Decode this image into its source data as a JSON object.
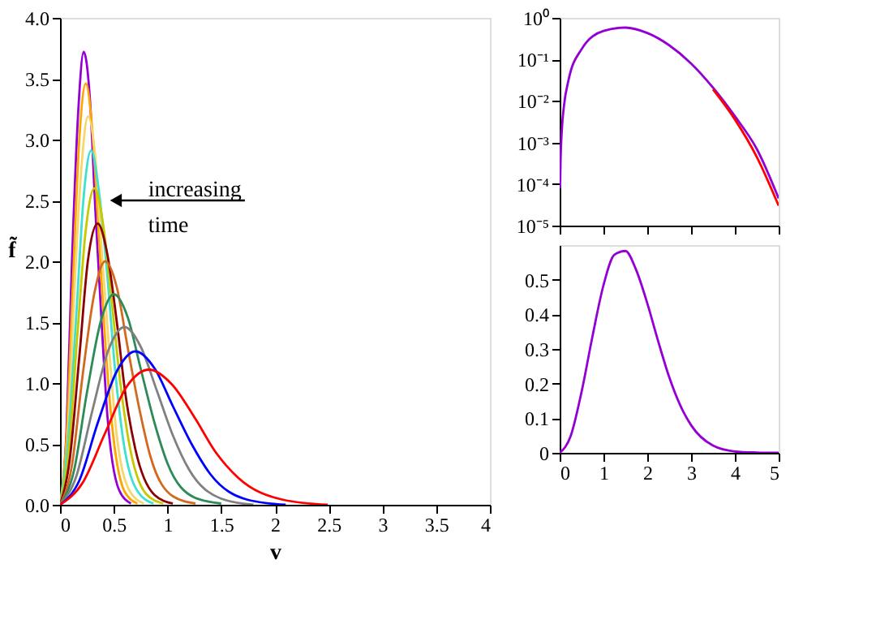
{
  "chart_data": [
    {
      "type": "line",
      "xlabel": "v",
      "ylabel": "f̃",
      "xlim": [
        0,
        4
      ],
      "ylim": [
        0,
        4
      ],
      "xticks": [
        0,
        0.5,
        1,
        1.5,
        2,
        2.5,
        3,
        3.5,
        4
      ],
      "yticks": [
        {
          "value": 0,
          "label": "0.0"
        },
        0.5,
        {
          "value": 1,
          "label": "1.0"
        },
        1.5,
        {
          "value": 2,
          "label": "2.0"
        },
        2.5,
        {
          "value": 3,
          "label": "3.0"
        },
        3.5,
        {
          "value": 4,
          "label": "4.0"
        }
      ],
      "grid": false,
      "marker": "none",
      "line_style": "solid",
      "annotations": [
        "increasing time"
      ],
      "series": [
        {
          "color": "#9400d3",
          "x": [
            0,
            0.06,
            0.11,
            0.17,
            0.22,
            0.28,
            0.33,
            0.39,
            0.44,
            0.55,
            0.66
          ],
          "values": [
            0,
            0.6,
            1.97,
            3.24,
            3.72,
            3.31,
            2.4,
            1.45,
            0.74,
            0.12,
            0.01
          ]
        },
        {
          "color": "#ffa500",
          "x": [
            0,
            0.06,
            0.12,
            0.18,
            0.24,
            0.3,
            0.36,
            0.42,
            0.48,
            0.6,
            0.72
          ],
          "values": [
            0,
            0.55,
            1.83,
            3.01,
            3.46,
            3.08,
            2.23,
            1.35,
            0.69,
            0.11,
            0.01
          ]
        },
        {
          "color": "#f5d76e",
          "x": [
            0,
            0.07,
            0.13,
            0.2,
            0.26,
            0.33,
            0.39,
            0.46,
            0.52,
            0.65,
            0.78
          ],
          "values": [
            0,
            0.51,
            1.69,
            2.78,
            3.19,
            2.84,
            2.06,
            1.24,
            0.63,
            0.11,
            0.01
          ]
        },
        {
          "color": "#40e0d0",
          "x": [
            0,
            0.07,
            0.15,
            0.22,
            0.29,
            0.36,
            0.44,
            0.51,
            0.58,
            0.73,
            0.87
          ],
          "values": [
            0,
            0.47,
            1.54,
            2.53,
            2.91,
            2.59,
            1.88,
            1.13,
            0.58,
            0.1,
            0.01
          ]
        },
        {
          "color": "#c8c800",
          "x": [
            0,
            0.08,
            0.16,
            0.24,
            0.32,
            0.4,
            0.48,
            0.56,
            0.64,
            0.8,
            0.96
          ],
          "values": [
            0,
            0.42,
            1.38,
            2.26,
            2.6,
            2.31,
            1.68,
            1.01,
            0.52,
            0.09,
            0.01
          ]
        },
        {
          "color": "#8b0000",
          "x": [
            0,
            0.09,
            0.18,
            0.26,
            0.35,
            0.44,
            0.53,
            0.61,
            0.7,
            0.88,
            1.05
          ],
          "values": [
            0,
            0.37,
            1.22,
            2.01,
            2.31,
            2.06,
            1.49,
            0.9,
            0.46,
            0.08,
            0.01
          ]
        },
        {
          "color": "#d2691e",
          "x": [
            0,
            0.11,
            0.21,
            0.32,
            0.42,
            0.53,
            0.63,
            0.74,
            0.84,
            1.05,
            1.26
          ],
          "values": [
            0,
            0.32,
            1.06,
            1.74,
            2.0,
            1.78,
            1.29,
            0.78,
            0.4,
            0.07,
            0.01
          ]
        },
        {
          "color": "#2e8b57",
          "x": [
            0,
            0.13,
            0.25,
            0.38,
            0.5,
            0.63,
            0.75,
            0.88,
            1.0,
            1.25,
            1.5
          ],
          "values": [
            0,
            0.28,
            0.92,
            1.51,
            1.73,
            1.54,
            1.12,
            0.67,
            0.34,
            0.06,
            0.01
          ]
        },
        {
          "color": "#808080",
          "x": [
            0,
            0.15,
            0.3,
            0.45,
            0.6,
            0.75,
            0.9,
            1.05,
            1.2,
            1.5,
            1.8
          ],
          "values": [
            0,
            0.23,
            0.77,
            1.27,
            1.46,
            1.3,
            0.94,
            0.57,
            0.29,
            0.05,
            0
          ]
        },
        {
          "color": "#0000ff",
          "x": [
            0,
            0.18,
            0.35,
            0.53,
            0.7,
            0.88,
            1.05,
            1.23,
            1.4,
            1.75,
            2.1
          ],
          "values": [
            0,
            0.2,
            0.67,
            1.1,
            1.26,
            1.12,
            0.81,
            0.49,
            0.25,
            0.04,
            0
          ]
        },
        {
          "color": "#ff0000",
          "x": [
            0,
            0.21,
            0.42,
            0.62,
            0.83,
            1.04,
            1.25,
            1.45,
            1.66,
            2.08,
            2.49
          ],
          "values": [
            0,
            0.18,
            0.59,
            0.97,
            1.11,
            0.99,
            0.72,
            0.43,
            0.22,
            0.04,
            0
          ]
        }
      ]
    },
    {
      "type": "line",
      "log": "y",
      "xlim": [
        0,
        5
      ],
      "ylim": [
        1e-05,
        1
      ],
      "tick_labels": "y",
      "xticks": [
        {
          "value": 0,
          "label": null
        },
        {
          "value": 1,
          "label": null
        },
        {
          "value": 2,
          "label": null
        },
        {
          "value": 3,
          "label": null
        },
        {
          "value": 4,
          "label": null
        },
        {
          "value": 5,
          "label": null
        }
      ],
      "yticks": [
        {
          "value": 1e-05,
          "label": "10⁻⁵"
        },
        {
          "value": 0.0001,
          "label": "10⁻⁴"
        },
        {
          "value": 0.001,
          "label": "10⁻³"
        },
        {
          "value": 0.01,
          "label": "10⁻²"
        },
        {
          "value": 0.1,
          "label": "10⁻¹"
        },
        {
          "value": 1,
          "label": "10⁰"
        }
      ],
      "grid": false,
      "marker": "none",
      "line_style": "solid",
      "series": [
        {
          "color": "#9400d3",
          "x": [
            0.01,
            0.02,
            0.05,
            0.1,
            0.2,
            0.5,
            1,
            1.5,
            2,
            2.5,
            3,
            3.5,
            4,
            4.5,
            5
          ],
          "values": [
            8e-05,
            0.00032,
            0.002,
            0.0079,
            0.031,
            0.176,
            0.484,
            0.583,
            0.432,
            0.219,
            0.08,
            0.021,
            0.0043,
            0.0007,
            4.5e-05
          ]
        },
        {
          "color": "#ff0000",
          "x": [
            3.5,
            4,
            4.5,
            5
          ],
          "values": [
            0.019,
            0.0036,
            0.00045,
            3e-05
          ]
        }
      ]
    },
    {
      "type": "line",
      "xlim": [
        0,
        5
      ],
      "ylim": [
        0,
        0.6
      ],
      "xticks": [
        0,
        1,
        2,
        3,
        4,
        5
      ],
      "yticks": [
        0,
        0.1,
        0.2,
        0.3,
        0.4,
        0.5
      ],
      "grid": false,
      "marker": "none",
      "line_style": "solid",
      "series": [
        {
          "color": "#9400d3",
          "x": [
            0,
            0.25,
            0.5,
            0.75,
            1,
            1.25,
            1.5,
            1.75,
            2,
            2.25,
            2.5,
            2.75,
            3,
            3.5,
            4,
            4.5,
            5
          ],
          "values": [
            0,
            0.048,
            0.176,
            0.337,
            0.484,
            0.572,
            0.583,
            0.527,
            0.432,
            0.322,
            0.219,
            0.138,
            0.08,
            0.021,
            0.004,
            0.001,
            0
          ]
        }
      ]
    }
  ]
}
